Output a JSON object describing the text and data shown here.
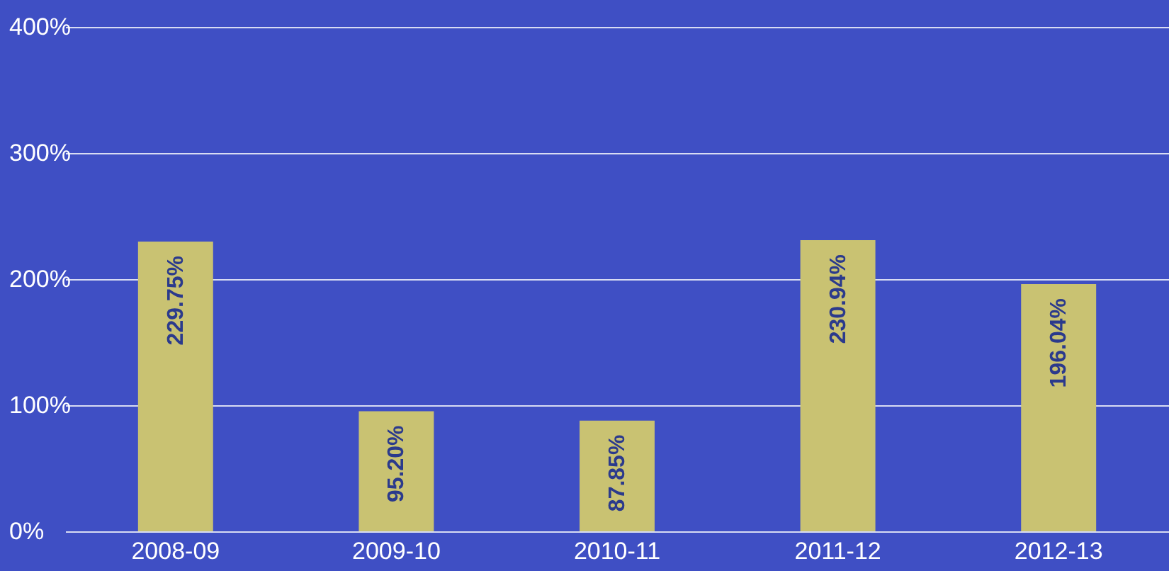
{
  "chart_data": {
    "type": "bar",
    "categories": [
      "2008-09",
      "2009-10",
      "2010-11",
      "2011-12",
      "2012-13"
    ],
    "values": [
      229.75,
      95.2,
      87.85,
      230.94,
      196.04
    ],
    "value_labels": [
      "229.75%",
      "95.20%",
      "87.85%",
      "230.94%",
      "196.04%"
    ],
    "color": "#c9c272",
    "ylim": [
      0,
      400
    ],
    "yticks": [
      {
        "value": 0,
        "label": "0%"
      },
      {
        "value": 100,
        "label": "100%"
      },
      {
        "value": 200,
        "label": "200%"
      },
      {
        "value": 300,
        "label": "300%"
      },
      {
        "value": 400,
        "label": "400%"
      }
    ],
    "grid": "y"
  }
}
